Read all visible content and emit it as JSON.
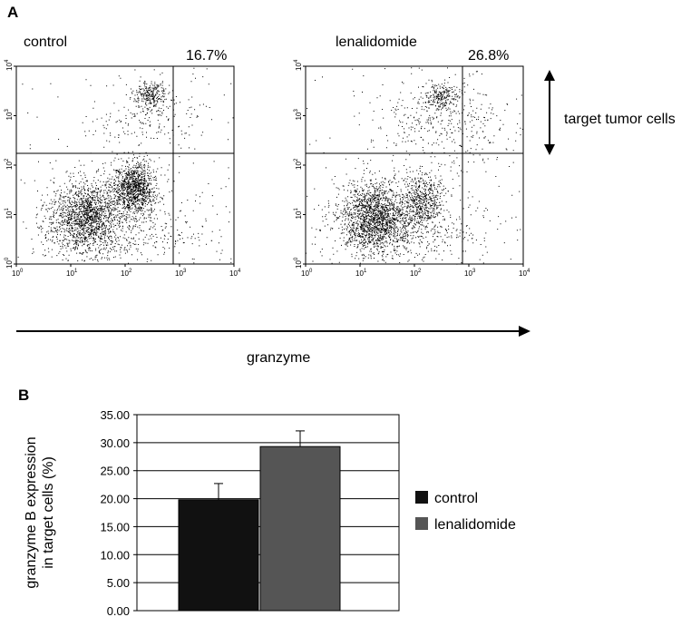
{
  "panels": {
    "a_letter": "A",
    "b_letter": "B"
  },
  "flow": {
    "plots": [
      {
        "title": "control",
        "upper_right_percent": "16.7%",
        "seed": 17
      },
      {
        "title": "lenalidomide",
        "upper_right_percent": "26.8%",
        "seed": 29
      }
    ],
    "x_axis_label": "granzyme",
    "y_annotation": "target tumor cells",
    "tick_base": "10",
    "tick_exponents": [
      "0",
      "1",
      "2",
      "3",
      "4"
    ]
  },
  "chart_data": {
    "type": "bar",
    "title": "",
    "ylabel_line1": "granzyme B expression",
    "ylabel_line2": "in target cells (%)",
    "xlabel": "",
    "ylim": [
      0,
      35
    ],
    "yticks": [
      "0.00",
      "5.00",
      "10.00",
      "15.00",
      "20.00",
      "25.00",
      "30.00",
      "35.00"
    ],
    "series": [
      {
        "name": "control",
        "value": 19.8,
        "error": 2.9,
        "color": "#111111"
      },
      {
        "name": "lenalidomide",
        "value": 29.3,
        "error": 2.8,
        "color": "#555555"
      }
    ],
    "legend_position": "right"
  }
}
